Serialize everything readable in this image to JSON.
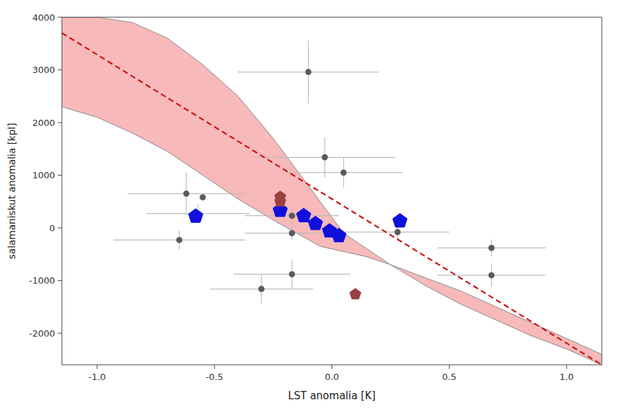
{
  "chart_data": {
    "type": "scatter",
    "xlabel": "LST anomalia [K]",
    "ylabel": "salamaniskut anomalia [kpl]",
    "xlim": [
      -1.15,
      1.15
    ],
    "ylim": [
      -2600,
      4000
    ],
    "xticks": [
      {
        "value": -1.0,
        "label": "-1.0"
      },
      {
        "value": -0.5,
        "label": "-0.5"
      },
      {
        "value": 0.0,
        "label": "0.0"
      },
      {
        "value": 0.5,
        "label": "0.5"
      },
      {
        "value": 1.0,
        "label": "1.0"
      }
    ],
    "yticks": [
      -2000,
      -1000,
      0,
      1000,
      2000,
      3000,
      4000
    ],
    "grid": false,
    "series": [
      {
        "type": "area",
        "color": "#f08080",
        "x": [
          -1.15,
          -1.0,
          -0.85,
          -0.7,
          -0.55,
          -0.4,
          -0.25,
          -0.15,
          -0.05,
          0.0,
          0.05,
          0.15,
          0.25,
          0.4,
          0.55,
          0.7,
          0.85,
          1.0,
          1.15
        ],
        "upper": [
          4000,
          4000,
          3900,
          3600,
          3100,
          2500,
          1700,
          1100,
          500,
          200,
          -100,
          -400,
          -700,
          -1100,
          -1450,
          -1750,
          -2050,
          -2300,
          -2600
        ],
        "lower": [
          2300,
          2100,
          1800,
          1450,
          1000,
          550,
          150,
          -100,
          -350,
          -400,
          -450,
          -550,
          -700,
          -950,
          -1200,
          -1500,
          -1800,
          -2100,
          -2400
        ]
      },
      {
        "type": "line",
        "color": "#cc1111",
        "line_style": "dashed",
        "x": [
          -1.15,
          1.15
        ],
        "values": [
          3700,
          -2600
        ]
      },
      {
        "type": "scatter",
        "color": "#5a5a5a",
        "marker": "circle",
        "x": [
          -0.62,
          -0.55,
          -0.57,
          -0.65,
          -0.17,
          -0.17,
          -0.17,
          -0.3,
          -0.1,
          -0.03,
          0.05,
          0.28,
          0.68,
          0.68
        ],
        "values": [
          650,
          580,
          270,
          -230,
          230,
          -100,
          -880,
          -1160,
          2960,
          1340,
          1050,
          -80,
          -380,
          -900
        ],
        "x_errors": [
          0.25,
          0.0,
          0.22,
          0.28,
          0.2,
          0.2,
          0.25,
          0.22,
          0.3,
          0.3,
          0.25,
          0.22,
          0.23,
          0.23
        ],
        "y_errors": [
          400,
          0,
          180,
          180,
          180,
          130,
          280,
          280,
          600,
          380,
          280,
          160,
          160,
          220
        ]
      },
      {
        "type": "scatter",
        "color": "#1010dd",
        "marker": "pentagon",
        "x": [
          -0.58,
          -0.22,
          -0.12,
          -0.07,
          -0.01,
          0.03,
          0.29
        ],
        "values": [
          220,
          330,
          230,
          80,
          -60,
          -150,
          130
        ]
      },
      {
        "type": "scatter",
        "color": "#9b4040",
        "marker": "pentagon",
        "x": [
          -0.22,
          -0.22,
          0.1
        ],
        "values": [
          590,
          500,
          -1260
        ]
      }
    ]
  }
}
